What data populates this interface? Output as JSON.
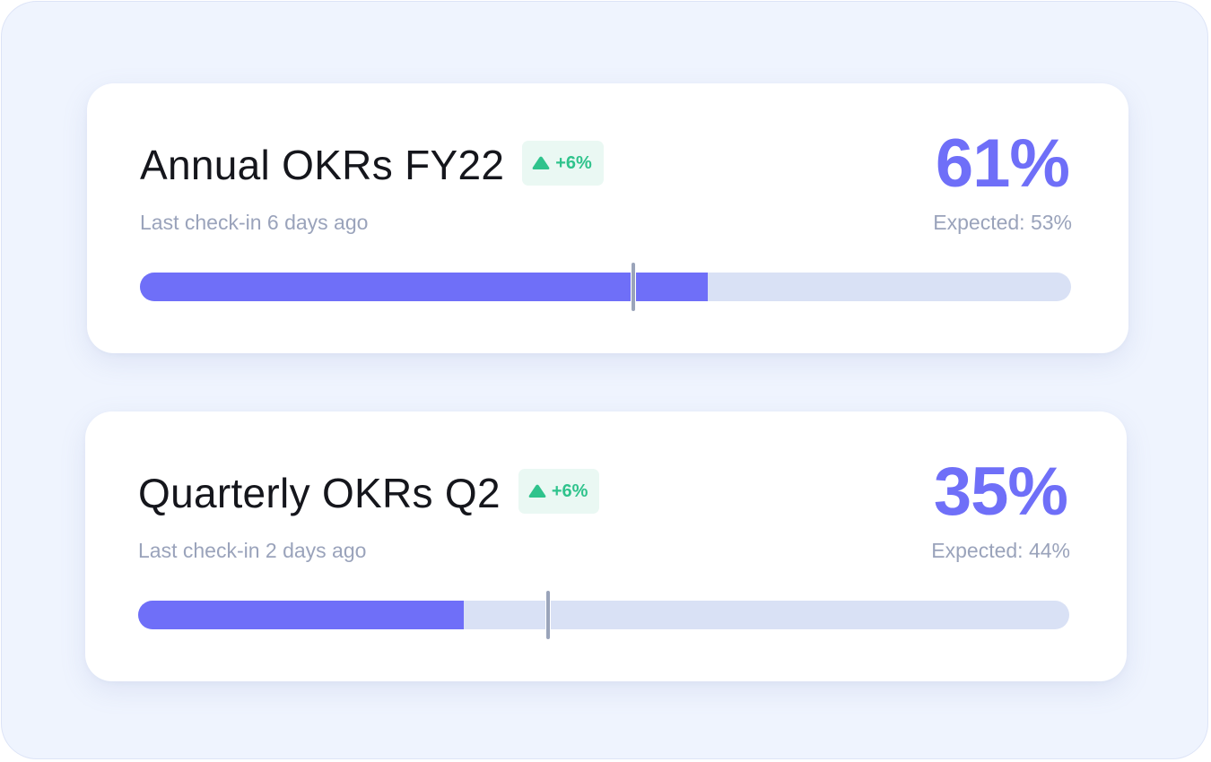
{
  "okrs": [
    {
      "title": "Annual OKRs FY22",
      "change_badge": "+6%",
      "last_checkin": "Last check-in 6 days ago",
      "progress_label": "61%",
      "expected_label": "Expected: 53%",
      "progress": 0.61,
      "expected": 0.53
    },
    {
      "title": "Quarterly OKRs Q2",
      "change_badge": "+6%",
      "last_checkin": "Last check-in 2 days ago",
      "progress_label": "35%",
      "expected_label": "Expected: 44%",
      "progress": 0.35,
      "expected": 0.44
    }
  ],
  "icons": {
    "badge_icon": "triangle-up-icon"
  },
  "colors": {
    "accent": "#6f6ff8",
    "positive": "#2fc38c",
    "positive_bg": "#eaf8f3",
    "track": "#d9e1f5",
    "marker": "#9aa4ba",
    "muted_text": "#9aa3bb",
    "title_text": "#15161c",
    "background": "#eff4fe"
  }
}
